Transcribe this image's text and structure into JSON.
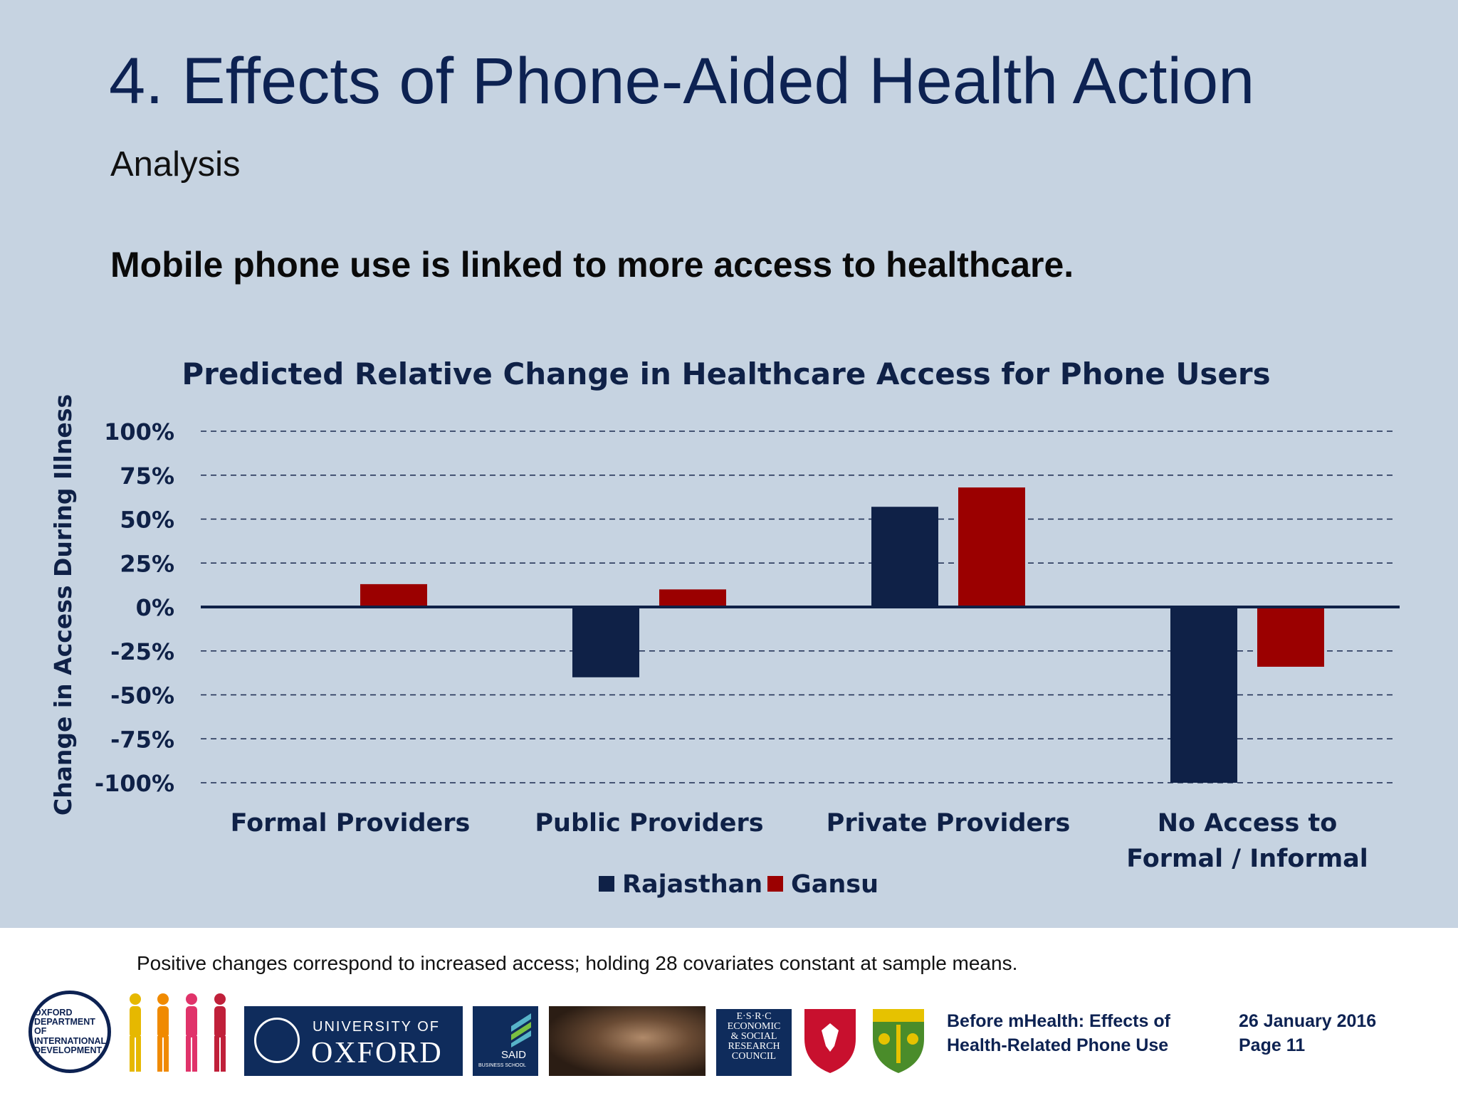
{
  "slide": {
    "title": "4. Effects of Phone-Aided Health Action",
    "subtitle": "Analysis",
    "headline": "Mobile phone use is linked to more access to healthcare."
  },
  "chart_data": {
    "type": "bar",
    "title": "Predicted Relative Change in Healthcare Access for Phone Users",
    "xlabel": "",
    "ylabel": "Change in Access During Illness",
    "ylim": [
      -100,
      100
    ],
    "yticks": [
      "100%",
      "75%",
      "50%",
      "25%",
      "0%",
      "-25%",
      "-50%",
      "-75%",
      "-100%"
    ],
    "ytick_values": [
      100,
      75,
      50,
      25,
      0,
      -25,
      -50,
      -75,
      -100
    ],
    "categories": [
      [
        "Formal Providers"
      ],
      [
        "Public Providers"
      ],
      [
        "Private Providers"
      ],
      [
        "No Access to",
        "Formal / Informal"
      ]
    ],
    "series": [
      {
        "name": "Rajasthan",
        "color": "#0f2147",
        "values": [
          0,
          -40,
          57,
          -100
        ]
      },
      {
        "name": "Gansu",
        "color": "#9b0000",
        "values": [
          13,
          10,
          68,
          -34
        ]
      }
    ],
    "grid": "dashed",
    "legend": "bottom-center"
  },
  "footer": {
    "footnote": "Positive changes correspond to increased access; holding 28 covariates constant at sample means.",
    "presentation_title_line1": "Before mHealth: Effects of",
    "presentation_title_line2": "Health-Related Phone Use",
    "date": "26 January 2016",
    "page": "Page 11",
    "logos": {
      "oid": "OXFORD\nDEPARTMENT OF\nINTERNATIONAL\nDEVELOPMENT",
      "oxford_line1": "UNIVERSITY OF",
      "oxford_line2": "OXFORD",
      "said": "SAID",
      "said_sub": "BUSINESS SCHOOL",
      "esrc": "E·S·R·C\nECONOMIC\n& SOCIAL\nRESEARCH\nCOUNCIL"
    }
  }
}
